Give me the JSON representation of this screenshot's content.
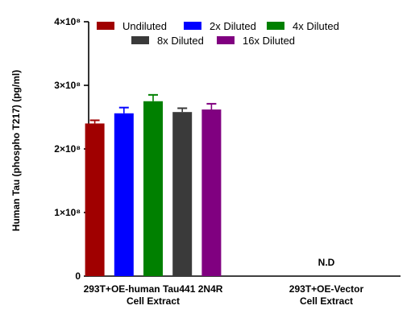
{
  "chart_data": {
    "type": "bar",
    "ylabel": "Human Tau (phospho T217) (pg/ml)",
    "ylim": [
      0,
      400000000
    ],
    "yticks": [
      {
        "value": 0,
        "label": "0"
      },
      {
        "value": 100000000,
        "label": "1×10⁸"
      },
      {
        "value": 200000000,
        "label": "2×10⁸"
      },
      {
        "value": 300000000,
        "label": "3×10⁸"
      },
      {
        "value": 400000000,
        "label": "4×10⁸"
      }
    ],
    "categories": [
      {
        "lines": [
          "293T+OE-human Tau441 2N4R",
          "Cell Extract"
        ]
      },
      {
        "lines": [
          "293T+OE-Vector",
          "Cell Extract"
        ]
      }
    ],
    "series": [
      {
        "name": "Undiluted",
        "color": "#a00000",
        "values": [
          240000000,
          null
        ],
        "errors": [
          5000000,
          null
        ]
      },
      {
        "name": "2x Diluted",
        "color": "#0000ff",
        "values": [
          256000000,
          null
        ],
        "errors": [
          9000000,
          null
        ]
      },
      {
        "name": "4x Diluted",
        "color": "#008000",
        "values": [
          275000000,
          null
        ],
        "errors": [
          10000000,
          null
        ]
      },
      {
        "name": "8x Diluted",
        "color": "#3a3a3a",
        "values": [
          258000000,
          null
        ],
        "errors": [
          6000000,
          null
        ]
      },
      {
        "name": "16x Diluted",
        "color": "#800080",
        "values": [
          262000000,
          null
        ],
        "errors": [
          9000000,
          null
        ]
      }
    ],
    "annotations": [
      {
        "category_index": 1,
        "text": "N.D"
      }
    ],
    "legend_position": "top",
    "grid": false
  }
}
